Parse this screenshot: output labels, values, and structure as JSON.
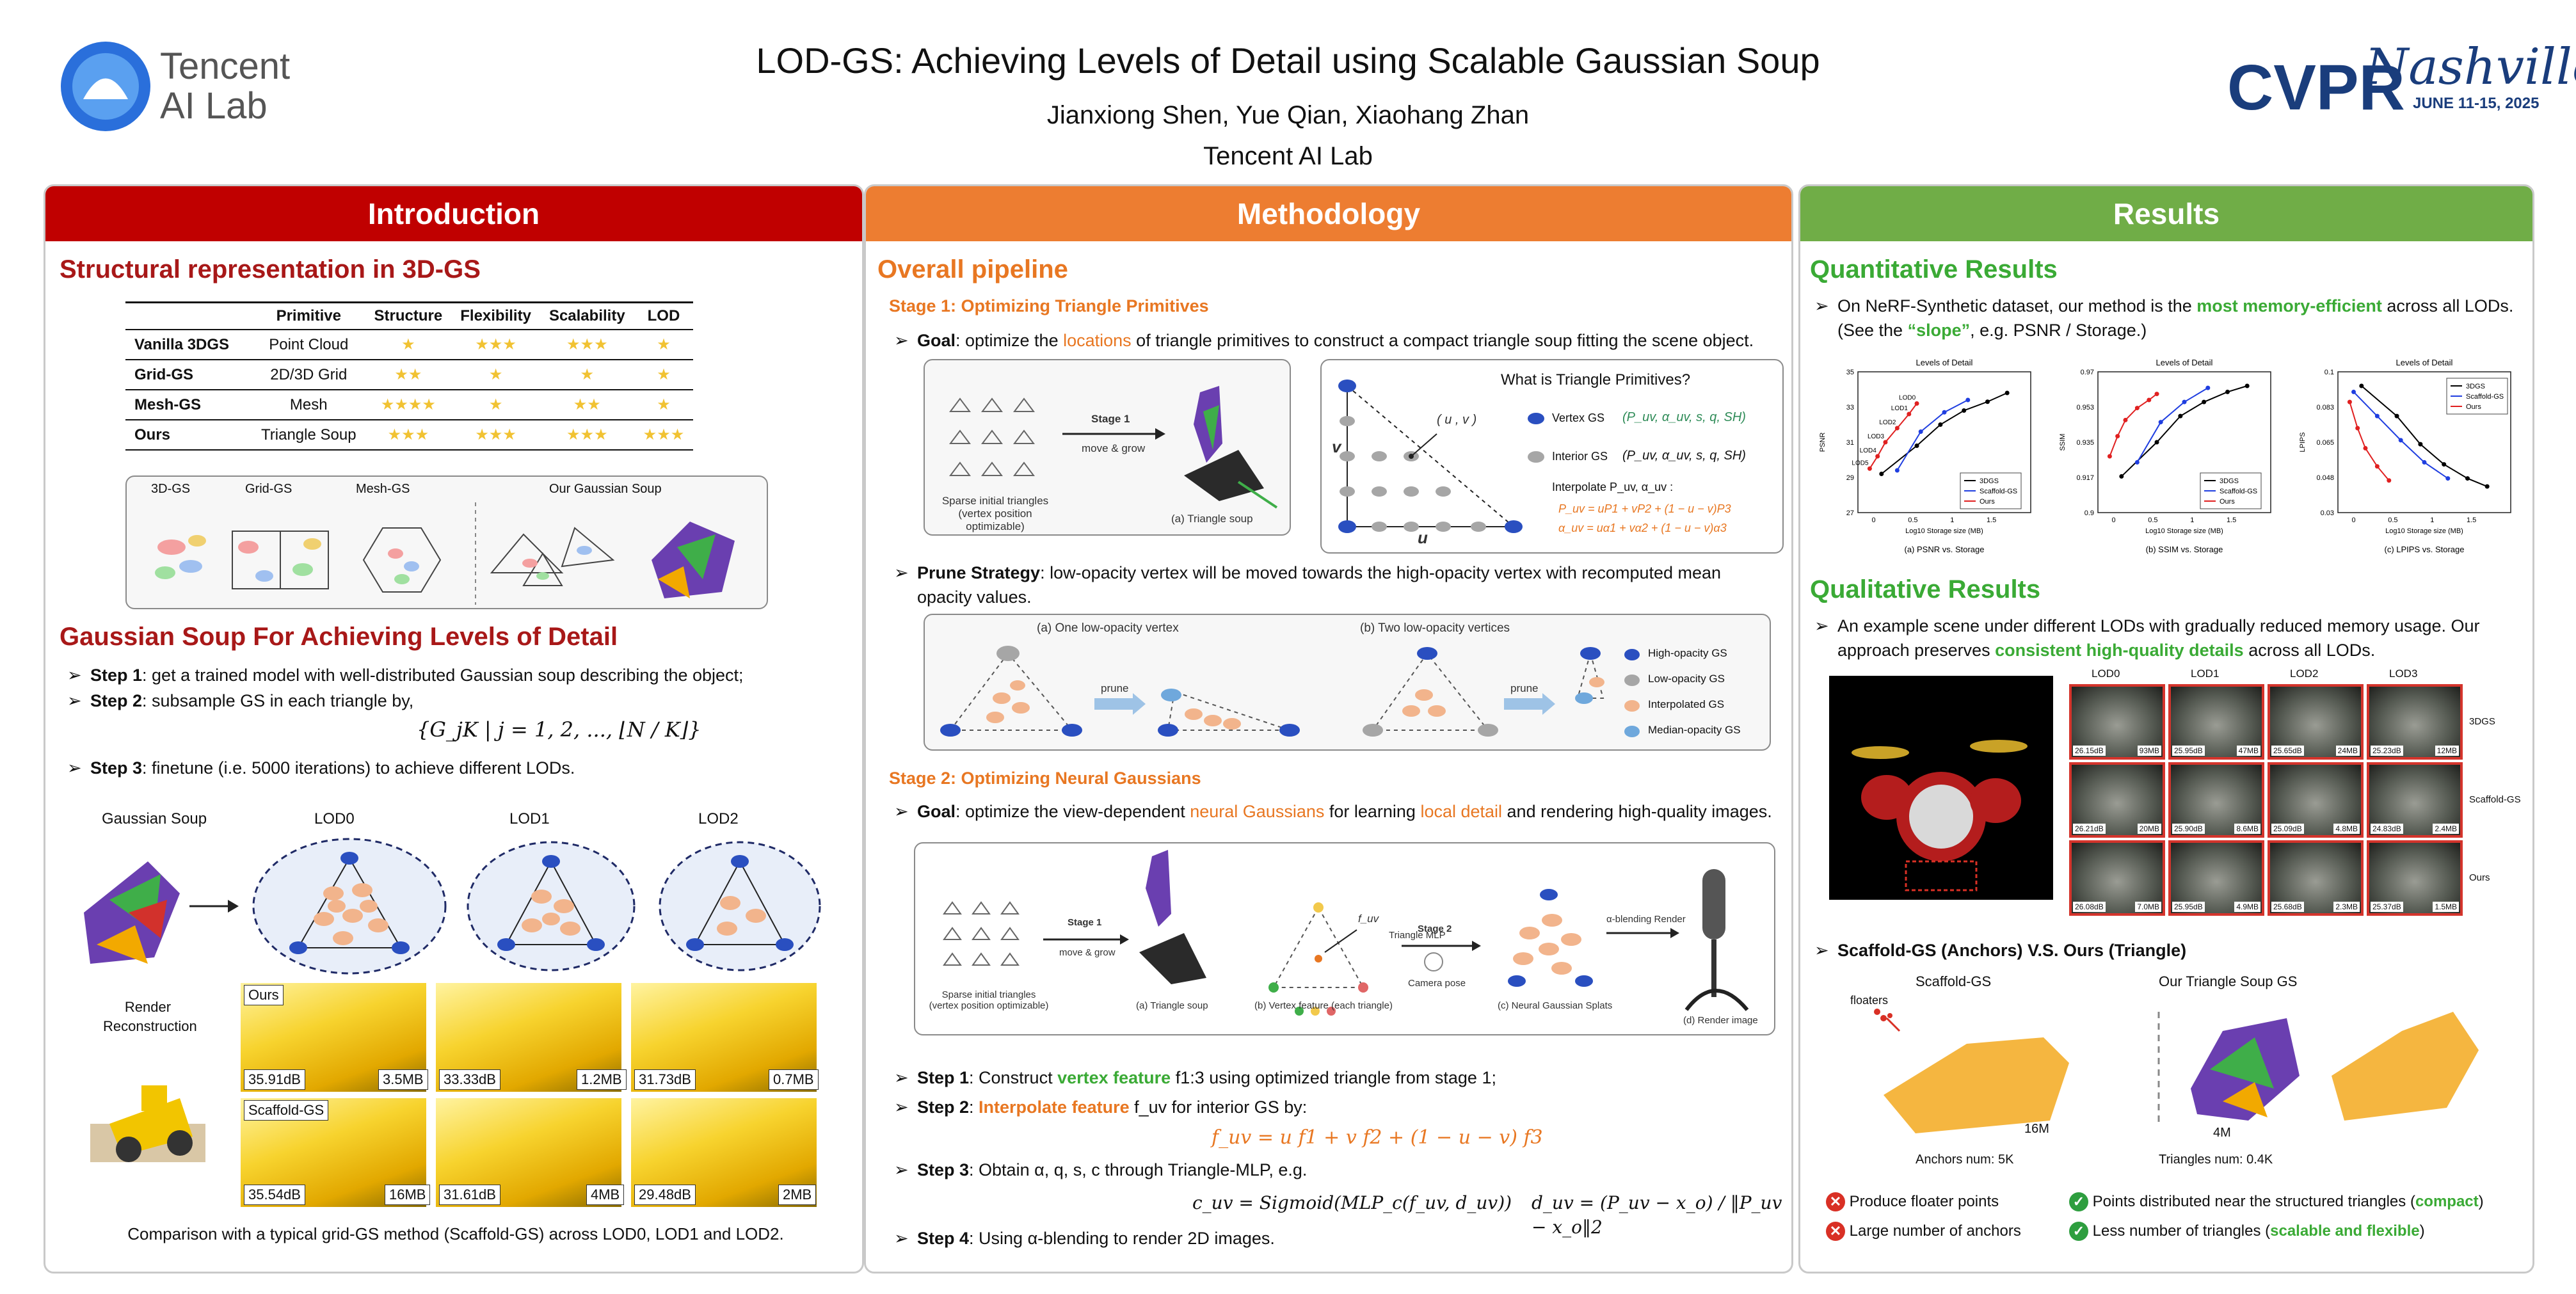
{
  "header": {
    "title": "LOD-GS: Achieving Levels of Detail using Scalable Gaussian Soup",
    "authors": "Jianxiong Shen, Yue Qian, Xiaohang Zhan",
    "affiliation": "Tencent AI Lab",
    "logo_text_line1": "Tencent",
    "logo_text_line2": "AI Lab",
    "conf_logo": "CVPR",
    "conf_script": "Nashville",
    "conf_dates": "JUNE 11-15, 2025"
  },
  "colors": {
    "intro": "#c00000",
    "method": "#ed7d31",
    "results": "#70ad47",
    "title_red": "#a81818",
    "accent_orange": "#e87722",
    "accent_green": "#3aaa35"
  },
  "intro": {
    "header": "Introduction",
    "sec1_title": "Structural representation in 3D-GS",
    "table": {
      "headers": [
        "",
        "Primitive",
        "Structure",
        "Flexibility",
        "Scalability",
        "LOD"
      ],
      "rows": [
        {
          "name": "Vanilla 3DGS",
          "primitive": "Point Cloud",
          "structure": "★",
          "flexibility": "★★★",
          "scalability": "★★★",
          "lod": "★"
        },
        {
          "name": "Grid-GS",
          "primitive": "2D/3D Grid",
          "structure": "★★",
          "flexibility": "★",
          "scalability": "★",
          "lod": "★"
        },
        {
          "name": "Mesh-GS",
          "primitive": "Mesh",
          "structure": "★★★★",
          "flexibility": "★",
          "scalability": "★★",
          "lod": "★"
        },
        {
          "name": "Ours",
          "primitive": "Triangle Soup",
          "structure": "★★★",
          "flexibility": "★★★",
          "scalability": "★★★",
          "lod": "★★★"
        }
      ]
    },
    "fig_labels": [
      "3D-GS",
      "Grid-GS",
      "Mesh-GS",
      "Our Gaussian Soup"
    ],
    "sec2_title": "Gaussian Soup For Achieving Levels of Detail",
    "steps": [
      {
        "label": "Step 1",
        "text": ": get a trained model with well-distributed Gaussian soup describing the object;"
      },
      {
        "label": "Step 2",
        "text": ": subsample GS in each triangle by,"
      },
      {
        "label": "Step 3",
        "text": ": finetune (i.e. 5000 iterations) to achieve different LODs."
      }
    ],
    "formula": "{G_jK | j = 1, 2, ..., ⌊N / K⌋}",
    "lod_headers": [
      "Gaussian Soup",
      "LOD0",
      "LOD1",
      "LOD2"
    ],
    "render_label": "Render\nReconstruction",
    "ours_tag": "Ours",
    "scaffold_tag": "Scaffold-GS",
    "ours_results": [
      [
        "35.91dB",
        "3.5MB"
      ],
      [
        "33.33dB",
        "1.2MB"
      ],
      [
        "31.73dB",
        "0.7MB"
      ]
    ],
    "scaffold_results": [
      [
        "35.54dB",
        "16MB"
      ],
      [
        "31.61dB",
        "4MB"
      ],
      [
        "29.48dB",
        "2MB"
      ]
    ],
    "caption": "Comparison with a typical grid-GS method (Scaffold-GS) across LOD0, LOD1 and LOD2."
  },
  "method": {
    "header": "Methodology",
    "sec_title": "Overall pipeline",
    "stage1_title": "Stage 1: Optimizing Triangle Primitives",
    "goal1_label": "Goal",
    "goal1_a": ": optimize the ",
    "goal1_hl": "locations",
    "goal1_b": " of triangle primitives to construct a compact triangle soup fitting the scene object.",
    "fig1": {
      "sparse": "Sparse initial triangles\n(vertex position optimizable)",
      "stage": "Stage 1",
      "move": "move & grow",
      "tri_soup": "(a) Triangle soup"
    },
    "prim_title": "What is Triangle Primitives?",
    "prim_uv": "( u , v )",
    "prim_axis_v": "v",
    "prim_axis_u": "u",
    "prim_legend": {
      "vertex": "Vertex GS",
      "vertex_math": "(P_uv, α_uv, s, q, SH)",
      "interior": "Interior GS",
      "interior_math": "(P_uv, α_uv, s, q, SH)",
      "interp": "Interpolate P_uv, α_uv :",
      "eq1": "P_uv = uP1 + vP2 + (1 − u − v)P3",
      "eq2": "α_uv = uα1 + vα2 + (1 − u − v)α3"
    },
    "prune_label": "Prune Strategy",
    "prune_text": ": low-opacity vertex will be moved towards the high-opacity vertex with recomputed mean opacity values.",
    "prune_fig": {
      "a": "(a) One low-opacity vertex",
      "b": "(b) Two low-opacity vertices",
      "arrow": "prune",
      "leg": [
        "High-opacity GS",
        "Low-opacity GS",
        "Interpolated GS",
        "Median-opacity GS"
      ]
    },
    "stage2_title": "Stage 2: Optimizing Neural Gaussians",
    "goal2_label": "Goal",
    "goal2_a": ": optimize the view-dependent ",
    "goal2_hl1": "neural Gaussians",
    "goal2_b": " for learning ",
    "goal2_hl2": "local detail",
    "goal2_c": " and rendering high-quality images.",
    "fig2": {
      "sparse": "Sparse initial triangles\n(vertex position optimizable)",
      "stage1": "Stage 1",
      "move": "move & grow",
      "a": "(a) Triangle soup",
      "b": "(b) Vertex feature (each triangle)",
      "fuv": "f_uv",
      "stage2": "Stage 2",
      "mlp": "Triangle MLP",
      "cam": "Camera pose",
      "c": "(c) Neural Gaussian Splats",
      "blend": "α-blending Render",
      "d": "(d) Render image"
    },
    "steps": [
      {
        "label": "Step 1",
        "a": ": Construct ",
        "hl": "vertex feature",
        "b": " f1:3  using optimized triangle from stage 1;"
      },
      {
        "label": "Step 2",
        "a": ": ",
        "hl": "Interpolate feature",
        "b": "  f_uv for interior GS by:"
      },
      {
        "label": "Step 3",
        "a": ": Obtain α, q, s, c  through Triangle-MLP, e.g.",
        "hl": "",
        "b": ""
      },
      {
        "label": "Step 4",
        "a": ": Using α-blending to render 2D images.",
        "hl": "",
        "b": ""
      }
    ],
    "eq_f": "f_uv = u f1 + v f2 + (1 − u − v) f3",
    "eq_c": "c_uv = Sigmoid(MLP_c(f_uv, d_uv))",
    "eq_d": "d_uv = (P_uv − x_o) / ‖P_uv − x_o‖2"
  },
  "results": {
    "header": "Results",
    "quant_title": "Quantitative Results",
    "quant_a": "On NeRF-Synthetic dataset, our method is the ",
    "quant_hl": "most memory-efficient",
    "quant_b": " across all LODs.",
    "quant_c": "(See the ",
    "quant_hl2": "“slope”",
    "quant_d": ", e.g. PSNR / Storage.)",
    "qual_title": "Qualitative Results",
    "qual_a": "An example scene under different LODs with gradually reduced memory usage. Our approach preserves ",
    "qual_hl": "consistent high-quality details",
    "qual_b": " across all LODs.",
    "grid_cols": [
      "LOD0",
      "LOD1",
      "LOD2",
      "LOD3"
    ],
    "grid_rows": [
      {
        "name": "3DGS",
        "cells": [
          [
            "26.15dB",
            "93MB"
          ],
          [
            "25.95dB",
            "47MB"
          ],
          [
            "25.65dB",
            "24MB"
          ],
          [
            "25.23dB",
            "12MB"
          ]
        ]
      },
      {
        "name": "Scaffold-GS",
        "cells": [
          [
            "26.21dB",
            "20MB"
          ],
          [
            "25.90dB",
            "8.6MB"
          ],
          [
            "25.09dB",
            "4.8MB"
          ],
          [
            "24.83dB",
            "2.4MB"
          ]
        ]
      },
      {
        "name": "Ours",
        "cells": [
          [
            "26.08dB",
            "7.0MB"
          ],
          [
            "25.95dB",
            "4.9MB"
          ],
          [
            "25.68dB",
            "2.3MB"
          ],
          [
            "25.37dB",
            "1.5MB"
          ]
        ]
      }
    ],
    "anchor_title": "Scaffold-GS (Anchors) V.S. Ours (Triangle)",
    "anchor_left": "Scaffold-GS",
    "anchor_right": "Our Triangle Soup GS",
    "floaters": "floaters",
    "left_size": "16M",
    "right_size": "4M",
    "anchors_num": "Anchors num: 5K",
    "tri_num": "Triangles num: 0.4K",
    "cons": [
      "Produce floater points",
      "Large number of anchors"
    ],
    "pros": [
      {
        "a": "Points distributed near the structured triangles (",
        "hl": "compact",
        "b": ")"
      },
      {
        "a": "Less number of triangles (",
        "hl": "scalable and flexible",
        "b": ")"
      }
    ]
  },
  "chart_data": [
    {
      "type": "line",
      "title": "Levels of Detail",
      "xlabel": "Log10 Storage size (MB)",
      "ylabel": "PSNR",
      "xlim": [
        -0.2,
        2.0
      ],
      "ylim": [
        27,
        35
      ],
      "caption": "(a) PSNR vs. Storage",
      "annotations": [
        "LOD0",
        "LOD1",
        "LOD2",
        "LOD3",
        "LOD4",
        "LOD5"
      ],
      "series": [
        {
          "name": "3DGS",
          "color": "#000000",
          "x": [
            0.1,
            0.55,
            0.85,
            1.15,
            1.45,
            1.7
          ],
          "y": [
            29.2,
            30.8,
            32.0,
            32.8,
            33.3,
            33.8
          ]
        },
        {
          "name": "Scaffold-GS",
          "color": "#1f3ee0",
          "x": [
            0.3,
            0.6,
            0.9,
            1.2
          ],
          "y": [
            29.4,
            31.6,
            32.7,
            33.4
          ]
        },
        {
          "name": "Ours",
          "color": "#e02020",
          "x": [
            -0.05,
            0.05,
            0.15,
            0.3,
            0.45,
            0.55
          ],
          "y": [
            29.5,
            30.2,
            31.0,
            31.8,
            32.6,
            33.2
          ]
        }
      ]
    },
    {
      "type": "line",
      "title": "Levels of Detail",
      "xlabel": "Log10 Storage size (MB)",
      "ylabel": "SSIM",
      "xlim": [
        -0.2,
        2.0
      ],
      "ylim": [
        0.9,
        0.97
      ],
      "caption": "(b) SSIM vs. Storage",
      "series": [
        {
          "name": "3DGS",
          "color": "#000000",
          "x": [
            0.1,
            0.55,
            0.85,
            1.15,
            1.45,
            1.7
          ],
          "y": [
            0.918,
            0.935,
            0.948,
            0.955,
            0.96,
            0.963
          ]
        },
        {
          "name": "Scaffold-GS",
          "color": "#1f3ee0",
          "x": [
            0.3,
            0.6,
            0.9,
            1.2
          ],
          "y": [
            0.925,
            0.945,
            0.955,
            0.962
          ]
        },
        {
          "name": "Ours",
          "color": "#e02020",
          "x": [
            -0.05,
            0.05,
            0.15,
            0.3,
            0.45,
            0.55
          ],
          "y": [
            0.928,
            0.938,
            0.946,
            0.952,
            0.956,
            0.959
          ]
        }
      ]
    },
    {
      "type": "line",
      "title": "Levels of Detail",
      "xlabel": "Log10 Storage size (MB)",
      "ylabel": "LPIPS",
      "xlim": [
        -0.2,
        2.0
      ],
      "ylim": [
        0.03,
        0.1
      ],
      "caption": "(c) LPIPS vs. Storage",
      "series": [
        {
          "name": "3DGS",
          "color": "#000000",
          "x": [
            0.1,
            0.55,
            0.85,
            1.15,
            1.45,
            1.7
          ],
          "y": [
            0.093,
            0.078,
            0.064,
            0.054,
            0.047,
            0.043
          ]
        },
        {
          "name": "Scaffold-GS",
          "color": "#1f3ee0",
          "x": [
            0.0,
            0.3,
            0.6,
            0.9,
            1.2
          ],
          "y": [
            0.09,
            0.078,
            0.066,
            0.055,
            0.047
          ]
        },
        {
          "name": "Ours",
          "color": "#e02020",
          "x": [
            -0.05,
            0.05,
            0.15,
            0.3,
            0.45
          ],
          "y": [
            0.085,
            0.072,
            0.062,
            0.053,
            0.046
          ]
        }
      ]
    }
  ]
}
